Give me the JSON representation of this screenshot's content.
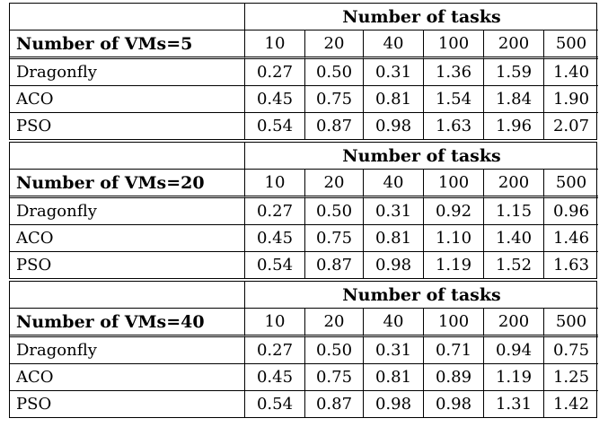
{
  "table": {
    "header_label": "Number of tasks",
    "task_counts": [
      "10",
      "20",
      "40",
      "100",
      "200",
      "500"
    ],
    "blocks": [
      {
        "vm_label": "Number of VMs=5",
        "rows": [
          {
            "name": "Dragonfly",
            "values": [
              "0.27",
              "0.50",
              "0.31",
              "1.36",
              "1.59",
              "1.40"
            ]
          },
          {
            "name": "ACO",
            "values": [
              "0.45",
              "0.75",
              "0.81",
              "1.54",
              "1.84",
              "1.90"
            ]
          },
          {
            "name": "PSO",
            "values": [
              "0.54",
              "0.87",
              "0.98",
              "1.63",
              "1.96",
              "2.07"
            ]
          }
        ]
      },
      {
        "vm_label": "Number of VMs=20",
        "rows": [
          {
            "name": "Dragonfly",
            "values": [
              "0.27",
              "0.50",
              "0.31",
              "0.92",
              "1.15",
              "0.96"
            ]
          },
          {
            "name": "ACO",
            "values": [
              "0.45",
              "0.75",
              "0.81",
              "1.10",
              "1.40",
              "1.46"
            ]
          },
          {
            "name": "PSO",
            "values": [
              "0.54",
              "0.87",
              "0.98",
              "1.19",
              "1.52",
              "1.63"
            ]
          }
        ]
      },
      {
        "vm_label": "Number of VMs=40",
        "rows": [
          {
            "name": "Dragonfly",
            "values": [
              "0.27",
              "0.50",
              "0.31",
              "0.71",
              "0.94",
              "0.75"
            ]
          },
          {
            "name": "ACO",
            "values": [
              "0.45",
              "0.75",
              "0.81",
              "0.89",
              "1.19",
              "1.25"
            ]
          },
          {
            "name": "PSO",
            "values": [
              "0.54",
              "0.87",
              "0.98",
              "0.98",
              "1.31",
              "1.42"
            ]
          }
        ]
      }
    ]
  }
}
